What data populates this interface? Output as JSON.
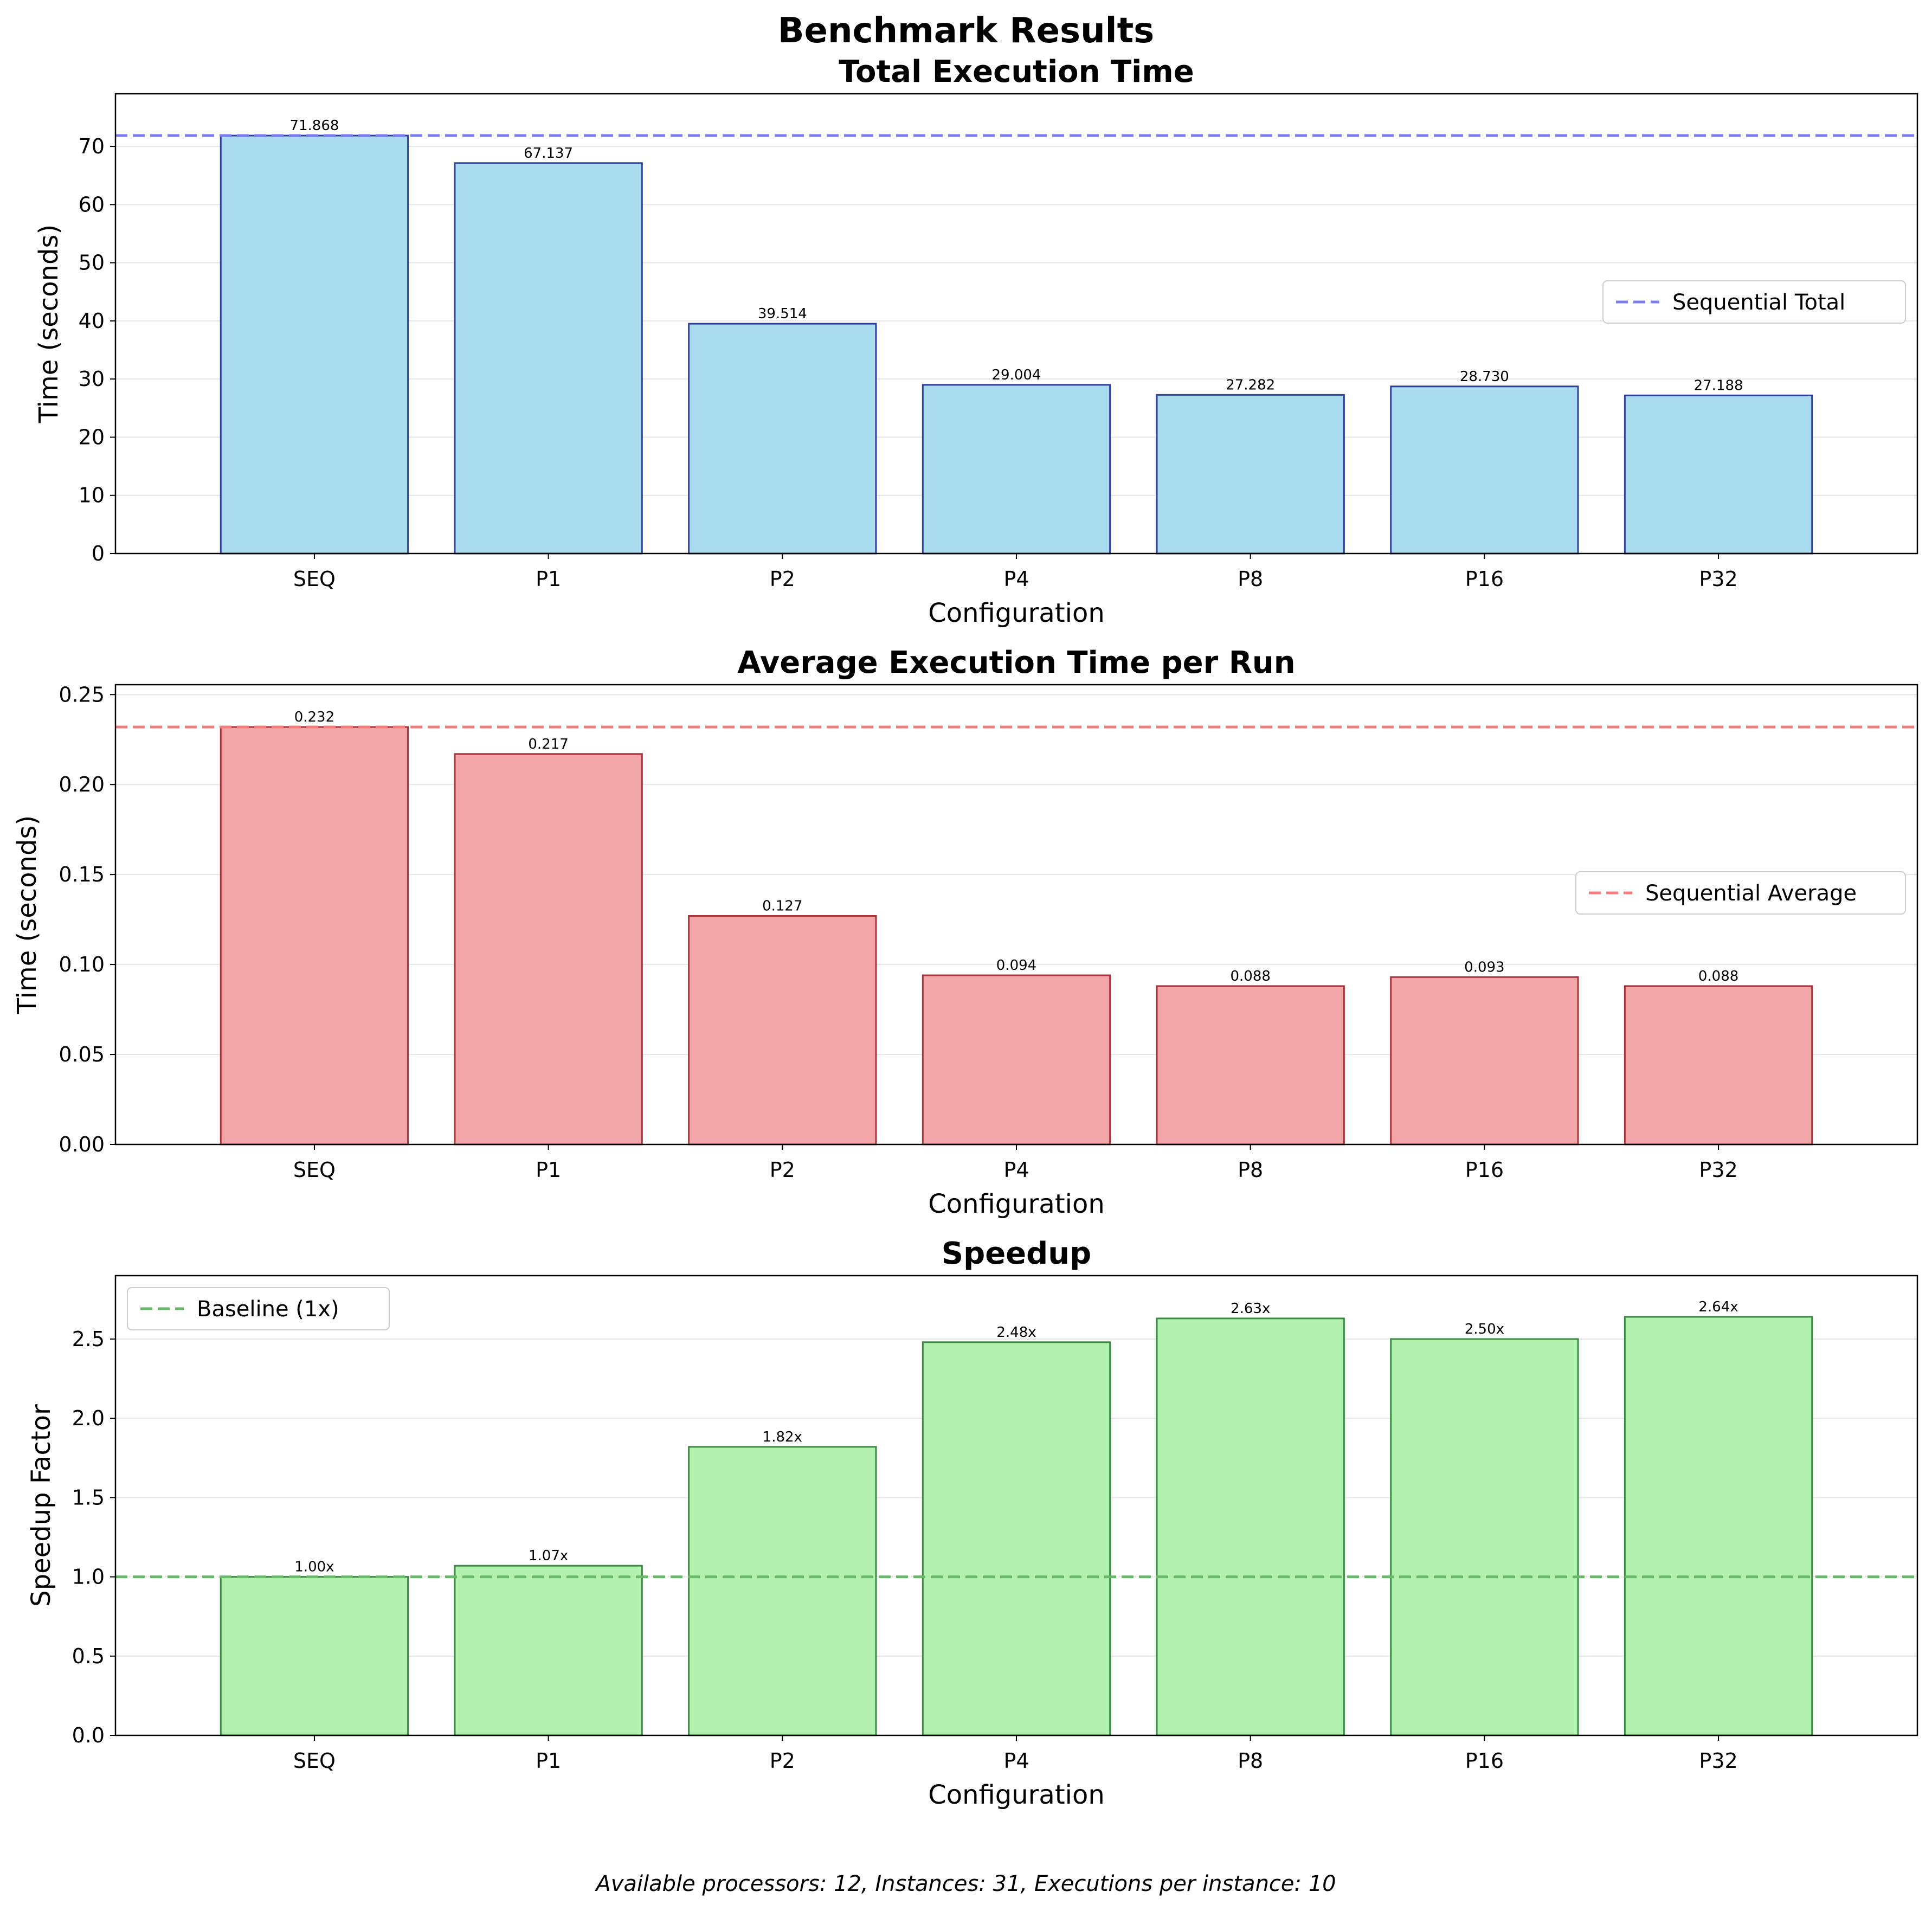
{
  "figure": {
    "title": "Benchmark Results",
    "footnote": "Available processors: 12, Instances: 31, Executions per instance: 10"
  },
  "chart_data": [
    {
      "type": "bar",
      "title": "Total Execution Time",
      "xlabel": "Configuration",
      "ylabel": "Time (seconds)",
      "categories": [
        "SEQ",
        "P1",
        "P2",
        "P4",
        "P8",
        "P16",
        "P32"
      ],
      "values": [
        71.868,
        67.137,
        39.514,
        29.004,
        27.282,
        28.73,
        27.188
      ],
      "value_labels": [
        "71.868",
        "67.137",
        "39.514",
        "29.004",
        "27.282",
        "28.730",
        "27.188"
      ],
      "ylim": [
        0,
        79.05
      ],
      "yticks": [
        0,
        10,
        20,
        30,
        40,
        50,
        60,
        70
      ],
      "ytick_labels": [
        "0",
        "10",
        "20",
        "30",
        "40",
        "50",
        "60",
        "70"
      ],
      "reference_line": {
        "value": 71.868,
        "label": "Sequential Total",
        "color": "#7b7bf5"
      },
      "legend_position": "center-right",
      "grid": "y",
      "bar_fill": "#a9dbee",
      "bar_edge": "#2e3f9e"
    },
    {
      "type": "bar",
      "title": "Average Execution Time per Run",
      "xlabel": "Configuration",
      "ylabel": "Time (seconds)",
      "categories": [
        "SEQ",
        "P1",
        "P2",
        "P4",
        "P8",
        "P16",
        "P32"
      ],
      "values": [
        0.232,
        0.217,
        0.127,
        0.094,
        0.088,
        0.093,
        0.088
      ],
      "value_labels": [
        "0.232",
        "0.217",
        "0.127",
        "0.094",
        "0.088",
        "0.093",
        "0.088"
      ],
      "ylim": [
        0,
        0.2555
      ],
      "yticks": [
        0,
        0.05,
        0.1,
        0.15,
        0.2,
        0.25
      ],
      "ytick_labels": [
        "0.00",
        "0.05",
        "0.10",
        "0.15",
        "0.20",
        "0.25"
      ],
      "reference_line": {
        "value": 0.232,
        "label": "Sequential Average",
        "color": "#f47c7c"
      },
      "legend_position": "center-right",
      "grid": "y",
      "bar_fill": "#f3a6a8",
      "bar_edge": "#a8323a"
    },
    {
      "type": "bar",
      "title": "Speedup",
      "xlabel": "Configuration",
      "ylabel": "Speedup Factor",
      "categories": [
        "SEQ",
        "P1",
        "P2",
        "P4",
        "P8",
        "P16",
        "P32"
      ],
      "values": [
        1.0,
        1.07,
        1.82,
        2.48,
        2.63,
        2.5,
        2.64
      ],
      "value_labels": [
        "1.00x",
        "1.07x",
        "1.82x",
        "2.48x",
        "2.63x",
        "2.50x",
        "2.64x"
      ],
      "ylim": [
        0,
        2.9
      ],
      "yticks": [
        0,
        0.5,
        1.0,
        1.5,
        2.0,
        2.5
      ],
      "ytick_labels": [
        "0.0",
        "0.5",
        "1.0",
        "1.5",
        "2.0",
        "2.5"
      ],
      "reference_line": {
        "value": 1.0,
        "label": "Baseline (1x)",
        "color": "#6ab86a"
      },
      "legend_position": "upper-left",
      "grid": "y",
      "bar_fill": "#b2f2ae",
      "bar_edge": "#3a8a44"
    }
  ]
}
